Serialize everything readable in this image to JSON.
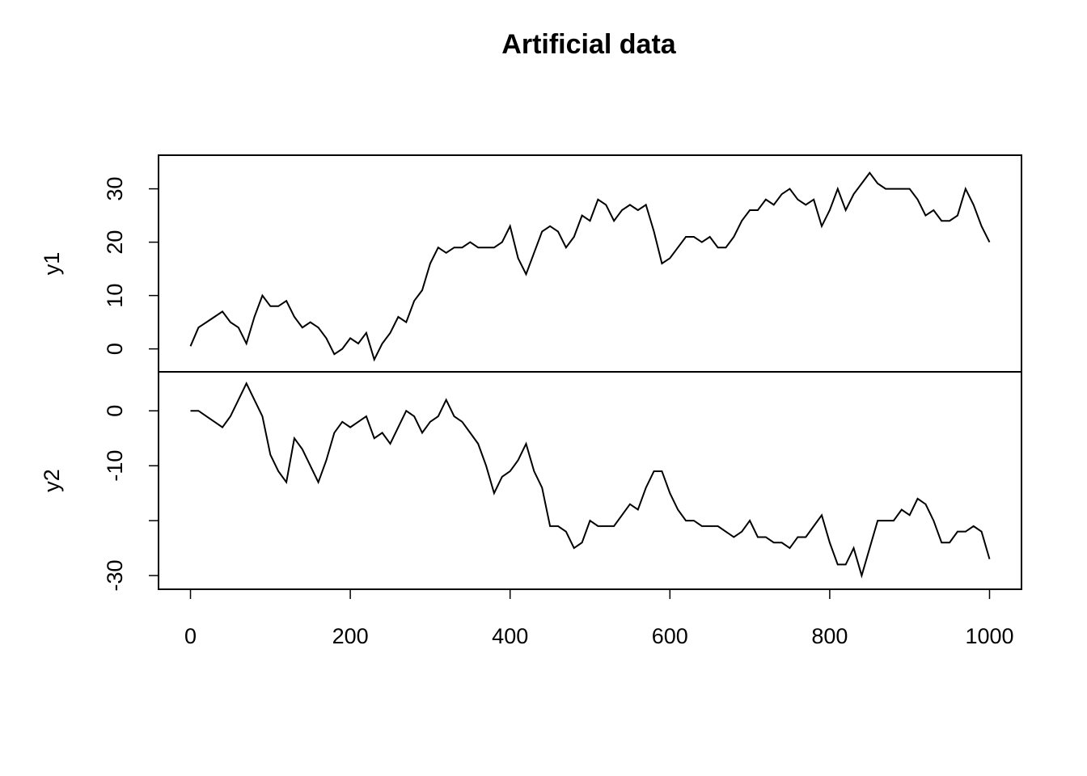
{
  "chart_data": {
    "type": "line",
    "title": "Artificial data",
    "x": [
      0,
      10,
      20,
      30,
      40,
      50,
      60,
      70,
      80,
      90,
      100,
      110,
      120,
      130,
      140,
      150,
      160,
      170,
      180,
      190,
      200,
      210,
      220,
      230,
      240,
      250,
      260,
      270,
      280,
      290,
      300,
      310,
      320,
      330,
      340,
      350,
      360,
      370,
      380,
      390,
      400,
      410,
      420,
      430,
      440,
      450,
      460,
      470,
      480,
      490,
      500,
      510,
      520,
      530,
      540,
      550,
      560,
      570,
      580,
      590,
      600,
      610,
      620,
      630,
      640,
      650,
      660,
      670,
      680,
      690,
      700,
      710,
      720,
      730,
      740,
      750,
      760,
      770,
      780,
      790,
      800,
      810,
      820,
      830,
      840,
      850,
      860,
      870,
      880,
      890,
      900,
      910,
      920,
      930,
      940,
      950,
      960,
      970,
      980,
      990,
      1000
    ],
    "xlim": [
      -40,
      1040
    ],
    "xticks": [
      0,
      200,
      400,
      600,
      800,
      1000
    ],
    "series": [
      {
        "name": "y1",
        "color": "#000000",
        "ylim": [
          -4.3,
          36.3
        ],
        "yticks": [
          0,
          10,
          20,
          30
        ],
        "values": [
          0.5,
          4,
          5,
          6,
          7,
          5,
          4,
          1,
          6,
          10,
          8,
          8,
          9,
          6,
          4,
          5,
          4,
          2,
          -1,
          0,
          2,
          1,
          3,
          -2,
          1,
          3,
          6,
          5,
          9,
          11,
          16,
          19,
          18,
          19,
          19,
          20,
          19,
          19,
          19,
          20,
          23,
          17,
          14,
          18,
          22,
          23,
          22,
          19,
          21,
          25,
          24,
          28,
          27,
          24,
          26,
          27,
          26,
          27,
          22,
          16,
          17,
          19,
          21,
          21,
          20,
          21,
          19,
          19,
          21,
          24,
          26,
          26,
          28,
          27,
          29,
          30,
          28,
          27,
          28,
          23,
          26,
          30,
          26,
          29,
          31,
          33,
          31,
          30,
          30,
          30,
          30,
          28,
          25,
          26,
          24,
          24,
          25,
          30,
          27,
          23,
          20
        ]
      },
      {
        "name": "y2",
        "color": "#000000",
        "ylim": [
          -32.5,
          7.1
        ],
        "yticks": [
          0,
          -10,
          {
            "value": -20,
            "label": null
          },
          -30
        ],
        "values": [
          0,
          0,
          -1,
          -2,
          -3,
          -1,
          2,
          5,
          2,
          -1,
          -8,
          -11,
          -13,
          -5,
          -7,
          -10,
          -13,
          -9,
          -4,
          -2,
          -3,
          -2,
          -1,
          -5,
          -4,
          -6,
          -3,
          0,
          -1,
          -4,
          -2,
          -1,
          2,
          -1,
          -2,
          -4,
          -6,
          -10,
          -15,
          -12,
          -11,
          -9,
          -6,
          -11,
          -14,
          -21,
          -21,
          -22,
          -25,
          -24,
          -20,
          -21,
          -21,
          -21,
          -19,
          -17,
          -18,
          -14,
          -11,
          -11,
          -15,
          -18,
          -20,
          -20,
          -21,
          -21,
          -21,
          -22,
          -23,
          -22,
          -20,
          -23,
          -23,
          -24,
          -24,
          -25,
          -23,
          -23,
          -21,
          -19,
          -24,
          -28,
          -28,
          -25,
          -30,
          -25,
          -20,
          -20,
          -20,
          -18,
          -19,
          -16,
          -17,
          -20,
          -24,
          -24,
          -22,
          -22,
          -21,
          -22,
          -27
        ]
      }
    ]
  }
}
